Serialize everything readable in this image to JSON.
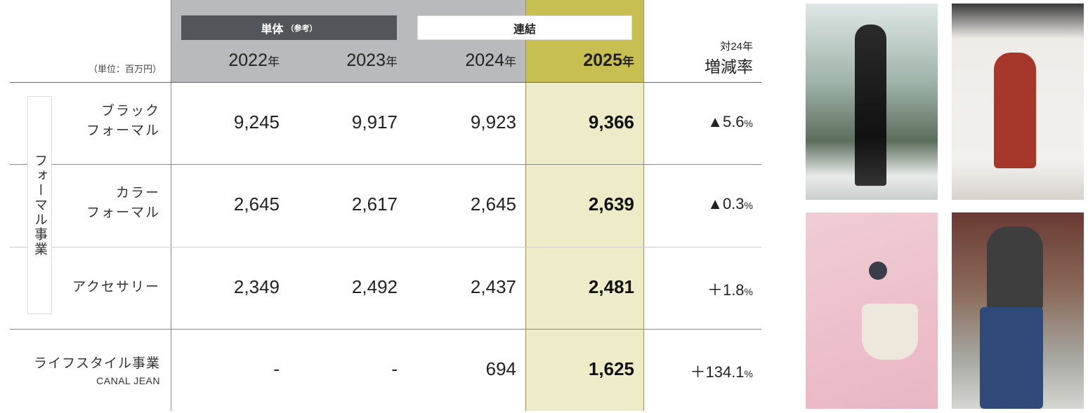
{
  "table": {
    "unit_label": "（単位：百万円）",
    "group_standalone": {
      "label": "単体",
      "note": "（参考）"
    },
    "group_consolidated": {
      "label": "連結"
    },
    "years": [
      {
        "num": "2022",
        "suffix": "年"
      },
      {
        "num": "2023",
        "suffix": "年"
      },
      {
        "num": "2024",
        "suffix": "年"
      },
      {
        "num": "2025",
        "suffix": "年"
      }
    ],
    "rate_header": {
      "line1": "対24年",
      "line2": "増減率"
    },
    "formal_group_label": "フォーマル事業",
    "rows": [
      {
        "label1": "ブラック",
        "label2": "フォーマル",
        "values": [
          "9,245",
          "9,917",
          "9,923",
          "9,366"
        ],
        "rate": "▲5.6",
        "rate_unit": "%"
      },
      {
        "label1": "カラー",
        "label2": "フォーマル",
        "values": [
          "2,645",
          "2,617",
          "2,645",
          "2,639"
        ],
        "rate": "▲0.3",
        "rate_unit": "%"
      },
      {
        "label1": "アクセサリー",
        "label2": "",
        "values": [
          "2,349",
          "2,492",
          "2,437",
          "2,481"
        ],
        "rate": "＋1.8",
        "rate_unit": "%"
      },
      {
        "label1": "ライフスタイル事業",
        "label2": "CANAL JEAN",
        "values": [
          "-",
          "-",
          "694",
          "1,625"
        ],
        "rate": "＋134.1",
        "rate_unit": "%"
      }
    ]
  },
  "colors": {
    "header_gray": "#b9babe",
    "highlight_olive": "#c8bf52",
    "highlight_light": "#eeebc9",
    "dark_bar": "#525559"
  },
  "photos": [
    "black-formal-dress-photo",
    "red-dress-photo",
    "accessories-bag-photo",
    "fleece-jacket-jeans-photo"
  ]
}
